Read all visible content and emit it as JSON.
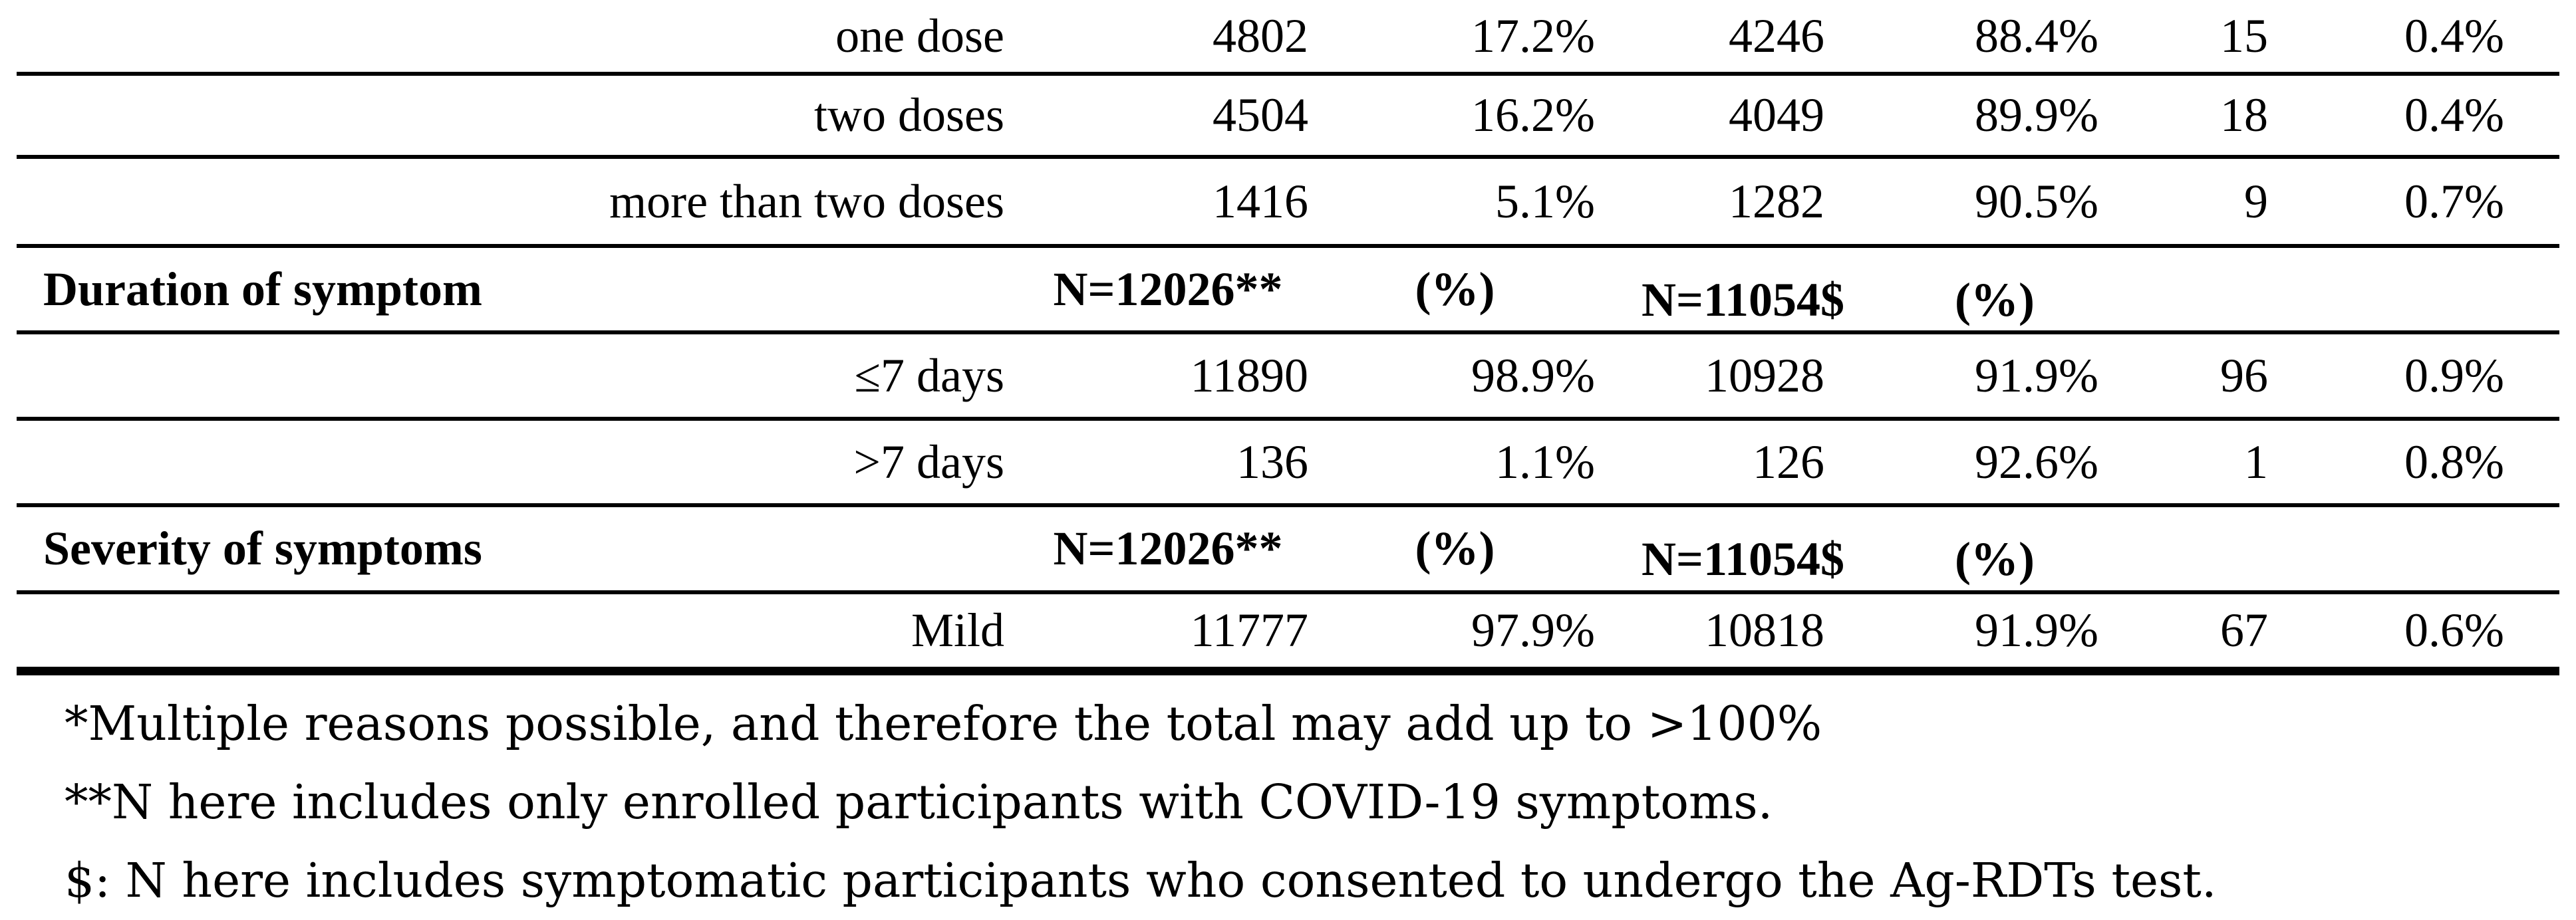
{
  "page": {
    "background": "#ffffff",
    "text_color": "#000000",
    "rule_color": "#000000"
  },
  "table": {
    "description": "Lower portion of a study characteristics table (enrolled participants, Ag-RDT tested participants, positives)",
    "rows": [
      {
        "type": "data",
        "label": "one dose",
        "values": [
          "4802",
          "17.2%",
          "4246",
          "88.4%",
          "15",
          "0.4%"
        ]
      },
      {
        "type": "data",
        "label": "two doses",
        "values": [
          "4504",
          "16.2%",
          "4049",
          "89.9%",
          "18",
          "0.4%"
        ]
      },
      {
        "type": "data",
        "label": "more than two doses",
        "values": [
          "1416",
          "5.1%",
          "1282",
          "90.5%",
          "9",
          "0.7%"
        ]
      },
      {
        "type": "section-header",
        "label": "Duration of symptom",
        "values": [
          "N=12026**",
          "(%)",
          "N=11054$",
          "(%)",
          "",
          ""
        ]
      },
      {
        "type": "data",
        "label": "≤7 days",
        "values": [
          "11890",
          "98.9%",
          "10928",
          "91.9%",
          "96",
          "0.9%"
        ]
      },
      {
        "type": "data",
        "label": ">7 days",
        "values": [
          "136",
          "1.1%",
          "126",
          "92.6%",
          "1",
          "0.8%"
        ]
      },
      {
        "type": "section-header",
        "label": "Severity of symptoms",
        "values": [
          "N=12026**",
          "(%)",
          "N=11054$",
          "(%)",
          "",
          ""
        ]
      },
      {
        "type": "data",
        "label": "Mild",
        "values": [
          "11777",
          "97.9%",
          "10818",
          "91.9%",
          "67",
          "0.6%"
        ]
      }
    ]
  },
  "footnotes": [
    "*Multiple reasons possible, and therefore the total may add up to >100%",
    "**N here includes only enrolled participants with COVID-19 symptoms.",
    "$: N here includes symptomatic participants who consented to undergo the Ag-RDTs test."
  ]
}
